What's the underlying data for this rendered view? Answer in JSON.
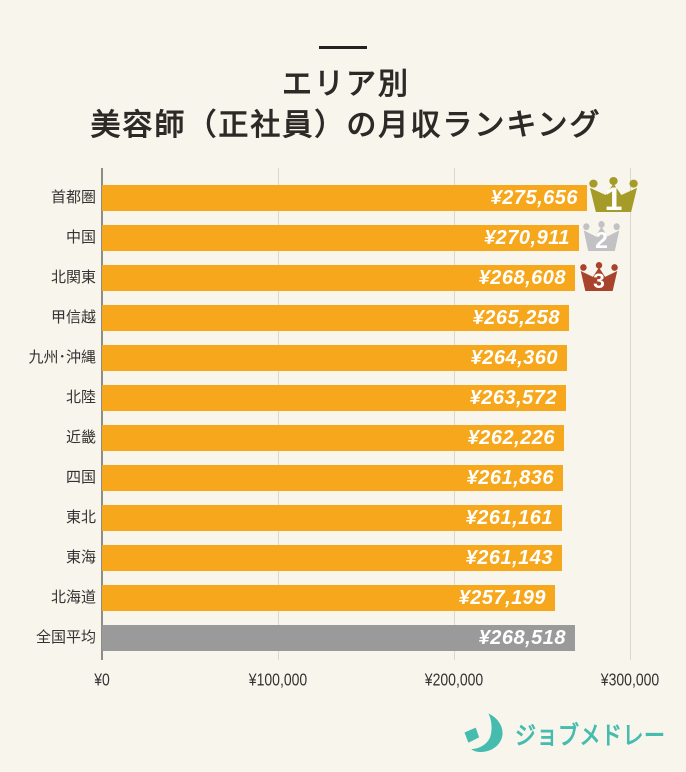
{
  "page": {
    "background_color": "#F8F5ED",
    "text_color": "#333333",
    "dash_color": "#222222"
  },
  "title": {
    "line1": "エリア別",
    "line2": "美容師（正社員）の月収ランキング",
    "color": "#2B2A26"
  },
  "chart_data": {
    "type": "bar",
    "orientation": "horizontal",
    "title": "エリア別 美容師（正社員）の月収ランキング",
    "xlim": [
      0,
      300000
    ],
    "grid": true,
    "bar_color": "#F6A71B",
    "average_bar_color": "#9A9A9A",
    "gridline_color": "#DAD7CF",
    "axis_line_color": "#8E8C86",
    "categories": [
      "首都圏",
      "中国",
      "北関東",
      "甲信越",
      "九州･沖縄",
      "北陸",
      "近畿",
      "四国",
      "東北",
      "東海",
      "北海道",
      "全国平均"
    ],
    "values": [
      275656,
      270911,
      268608,
      265258,
      264360,
      263572,
      262226,
      261836,
      261161,
      261143,
      257199,
      268518
    ],
    "rows": [
      {
        "label": "首都圏",
        "value": 275656,
        "display": "¥275,656",
        "rank": "1",
        "is_average": false
      },
      {
        "label": "中国",
        "value": 270911,
        "display": "¥270,911",
        "rank": "2",
        "is_average": false
      },
      {
        "label": "北関東",
        "value": 268608,
        "display": "¥268,608",
        "rank": "3",
        "is_average": false
      },
      {
        "label": "甲信越",
        "value": 265258,
        "display": "¥265,258",
        "rank": null,
        "is_average": false
      },
      {
        "label": "九州･沖縄",
        "value": 264360,
        "display": "¥264,360",
        "rank": null,
        "is_average": false
      },
      {
        "label": "北陸",
        "value": 263572,
        "display": "¥263,572",
        "rank": null,
        "is_average": false
      },
      {
        "label": "近畿",
        "value": 262226,
        "display": "¥262,226",
        "rank": null,
        "is_average": false
      },
      {
        "label": "四国",
        "value": 261836,
        "display": "¥261,836",
        "rank": null,
        "is_average": false
      },
      {
        "label": "東北",
        "value": 261161,
        "display": "¥261,161",
        "rank": null,
        "is_average": false
      },
      {
        "label": "東海",
        "value": 261143,
        "display": "¥261,143",
        "rank": null,
        "is_average": false
      },
      {
        "label": "北海道",
        "value": 257199,
        "display": "¥257,199",
        "rank": null,
        "is_average": false
      },
      {
        "label": "全国平均",
        "value": 268518,
        "display": "¥268,518",
        "rank": null,
        "is_average": true
      }
    ],
    "x_ticks": [
      {
        "label": "¥0",
        "value": 0
      },
      {
        "label": "¥100,000",
        "value": 100000
      },
      {
        "label": "¥200,000",
        "value": 200000
      },
      {
        "label": "¥300,000",
        "value": 300000
      }
    ],
    "ranks": [
      {
        "num": "1",
        "color": "#A49B28"
      },
      {
        "num": "2",
        "color": "#C2C2C4"
      },
      {
        "num": "3",
        "color": "#A8432C"
      }
    ],
    "legend": null
  },
  "footer": {
    "brand": "ジョブメドレー",
    "brand_color": "#46BCAE",
    "logo_icon": "crescent-j-logo"
  }
}
